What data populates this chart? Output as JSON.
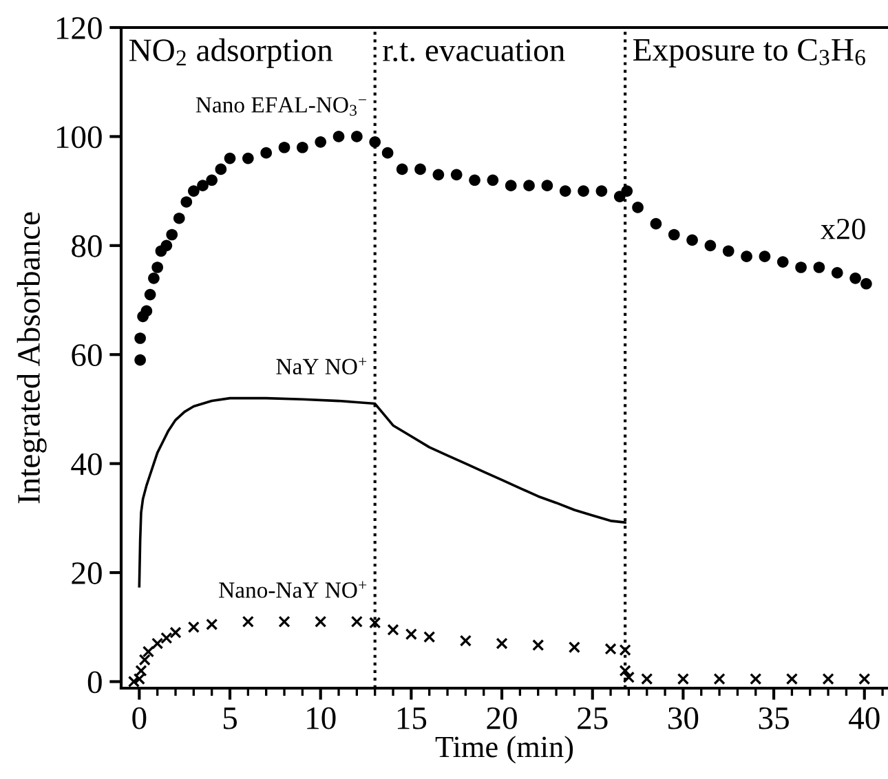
{
  "chart_data": {
    "type": "scatter",
    "xlabel": "Time (min)",
    "ylabel": "Integrated Absorbance",
    "xlim": [
      -1,
      41.3
    ],
    "ylim": [
      -1.2,
      120
    ],
    "xticks": [
      0,
      5,
      10,
      15,
      20,
      25,
      30,
      35,
      40,
      {
        "value": 1,
        "label": null
      },
      {
        "value": 2,
        "label": null
      },
      {
        "value": 3,
        "label": null
      },
      {
        "value": 4,
        "label": null
      },
      {
        "value": 6,
        "label": null
      },
      {
        "value": 7,
        "label": null
      },
      {
        "value": 8,
        "label": null
      },
      {
        "value": 9,
        "label": null
      },
      {
        "value": 11,
        "label": null
      },
      {
        "value": 12,
        "label": null
      },
      {
        "value": 13,
        "label": null
      },
      {
        "value": 14,
        "label": null
      },
      {
        "value": 16,
        "label": null
      },
      {
        "value": 17,
        "label": null
      },
      {
        "value": 18,
        "label": null
      },
      {
        "value": 19,
        "label": null
      },
      {
        "value": 21,
        "label": null
      },
      {
        "value": 22,
        "label": null
      },
      {
        "value": 23,
        "label": null
      },
      {
        "value": 24,
        "label": null
      },
      {
        "value": 26,
        "label": null
      },
      {
        "value": 27,
        "label": null
      },
      {
        "value": 28,
        "label": null
      },
      {
        "value": 29,
        "label": null
      },
      {
        "value": 31,
        "label": null
      },
      {
        "value": 32,
        "label": null
      },
      {
        "value": 33,
        "label": null
      },
      {
        "value": 34,
        "label": null
      },
      {
        "value": 36,
        "label": null
      },
      {
        "value": 37,
        "label": null
      },
      {
        "value": 38,
        "label": null
      },
      {
        "value": 39,
        "label": null
      },
      {
        "value": 41,
        "label": null
      }
    ],
    "yticks": [
      0,
      20,
      40,
      60,
      80,
      100,
      120
    ],
    "grid": false,
    "legend": false,
    "series": [
      {
        "name": "Nano EFAL-NO$_{3}$$^{−}$",
        "color": "#000000",
        "marker": "circle",
        "x": [
          0.05,
          0.05,
          0.2,
          0.4,
          0.6,
          0.8,
          1.0,
          1.2,
          1.5,
          1.8,
          2.2,
          2.6,
          3,
          3.5,
          4,
          4.5,
          5,
          6,
          7,
          8,
          9,
          10,
          11,
          12,
          13,
          13.7,
          14.5,
          15.5,
          16.5,
          17.5,
          18.5,
          19.5,
          20.5,
          21.5,
          22.5,
          23.5,
          24.5,
          25.5,
          26.5,
          26.9,
          27.5,
          28.5,
          29.5,
          30.5,
          31.5,
          32.5,
          33.5,
          34.5,
          35.5,
          36.5,
          37.5,
          38.5,
          39.5,
          40.1
        ],
        "values": [
          59,
          63,
          67,
          68,
          71,
          74,
          76,
          79,
          80,
          82,
          85,
          88,
          90,
          91,
          92,
          94,
          96,
          96,
          97,
          98,
          98,
          99,
          100,
          100,
          99,
          97,
          94,
          94,
          93,
          93,
          92,
          92,
          91,
          91,
          91,
          90,
          90,
          90,
          89,
          90,
          87,
          84,
          82,
          81,
          80,
          79,
          78,
          78,
          77,
          76,
          76,
          75,
          74,
          73
        ]
      },
      {
        "name": "NaY NO$^{+}$",
        "type": "line",
        "marker": "none",
        "color": "#000000",
        "x": [
          0,
          0.05,
          0.1,
          0.2,
          0.4,
          0.6,
          0.8,
          1.0,
          1.3,
          1.6,
          2,
          2.5,
          3,
          4,
          5,
          7,
          9,
          11,
          13,
          13.5,
          14,
          15,
          16,
          17,
          18,
          19,
          20,
          21,
          22,
          23,
          24,
          25,
          26,
          26.8
        ],
        "values": [
          17.5,
          26,
          31,
          33.5,
          36,
          38,
          40,
          42,
          44,
          46,
          48,
          49.5,
          50.5,
          51.5,
          52,
          52,
          51.8,
          51.5,
          51,
          49,
          47,
          45,
          43,
          41.5,
          40,
          38.5,
          37,
          35.5,
          34,
          32.8,
          31.5,
          30.5,
          29.5,
          29.2
        ]
      },
      {
        "name": "Nano-NaY NO$^{+}$",
        "color": "#000000",
        "marker": "cross",
        "x": [
          -0.3,
          0,
          0.1,
          0.3,
          0.5,
          1,
          1.5,
          2,
          3,
          4,
          6,
          8,
          10,
          12,
          13,
          14,
          15,
          16,
          18,
          20,
          22,
          24,
          26,
          26.8,
          26.8,
          27,
          28,
          30,
          32,
          34,
          36,
          38,
          40
        ],
        "values": [
          0,
          0.5,
          2,
          4,
          5.5,
          7,
          8,
          9,
          10,
          10.5,
          11,
          11,
          11,
          11,
          10.8,
          9.5,
          8.7,
          8.2,
          7.5,
          7,
          6.7,
          6.3,
          6,
          5.8,
          2,
          0.8,
          0.5,
          0.5,
          0.5,
          0.5,
          0.5,
          0.5,
          0.5
        ]
      }
    ],
    "ref_lines": [
      {
        "axis": "x",
        "value": 13,
        "line_style": "dotted",
        "color": "#000000"
      },
      {
        "axis": "x",
        "value": 26.8,
        "line_style": "dotted",
        "color": "#000000"
      }
    ],
    "annotations": [
      "NO$_{2}$ adsorption",
      "r.t. evacuation",
      "Exposure to C$_{3}$H$_{6}$",
      "x20"
    ]
  }
}
